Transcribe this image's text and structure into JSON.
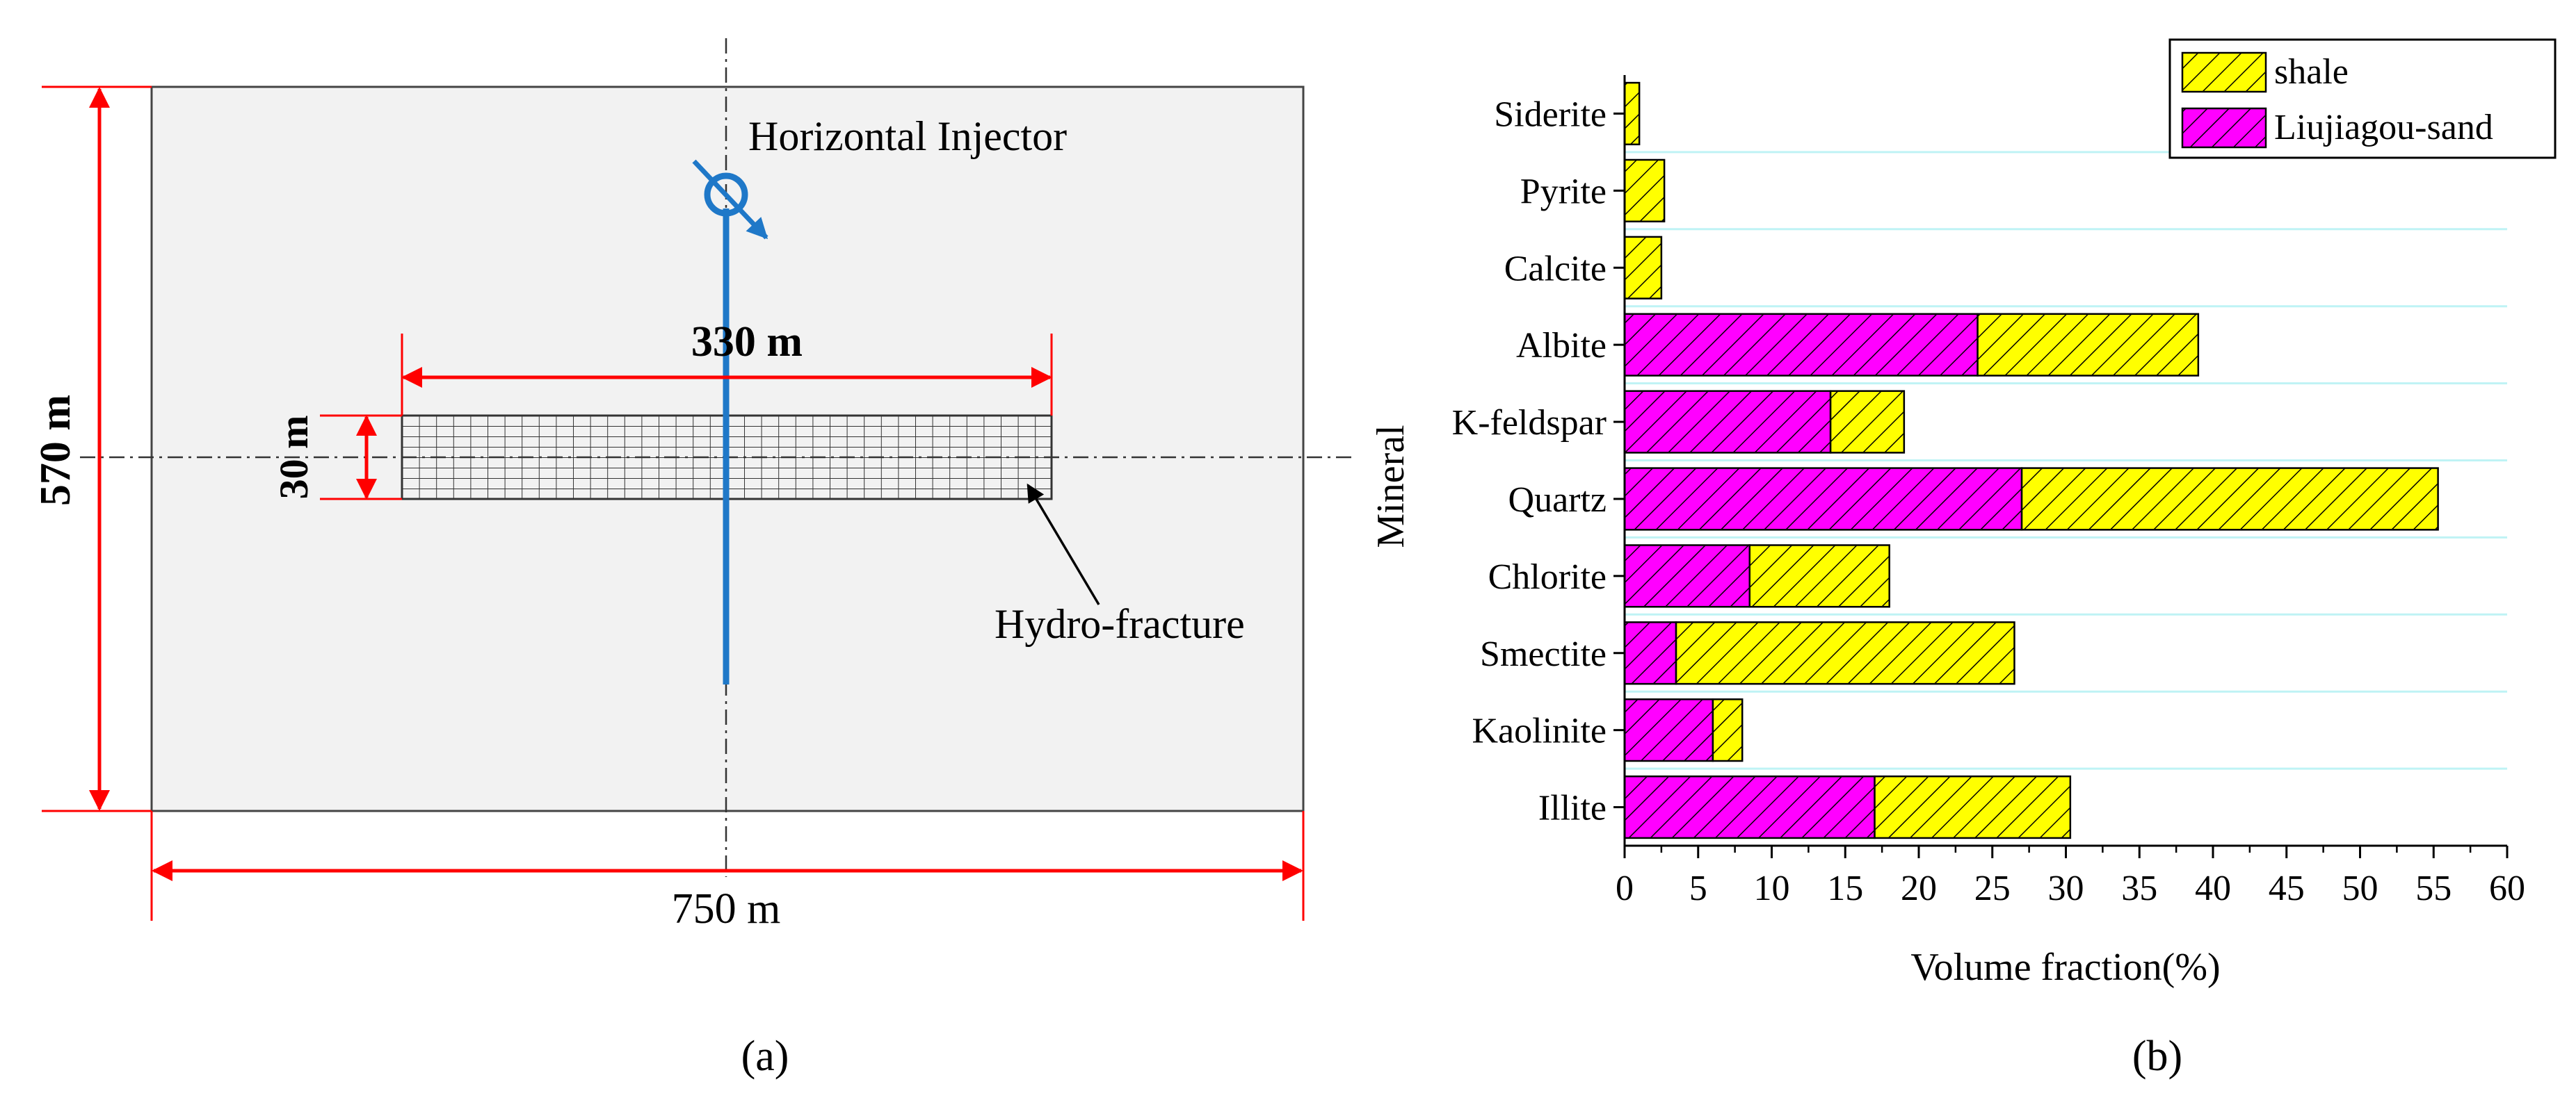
{
  "panel_a": {
    "injector_label": "Horizontal Injector",
    "fracture_length": "330 m",
    "fracture_width": "30 m",
    "domain_height": "570 m",
    "domain_width": "750 m",
    "fracture_label": "Hydro-fracture",
    "caption": "(a)",
    "colors": {
      "dimension": "#ff0000",
      "well": "#1f78c8",
      "domain_fill": "#f2f2f2",
      "grid": "#333333"
    }
  },
  "panel_b": {
    "caption": "(b)"
  },
  "chart_data": {
    "type": "bar",
    "orientation": "horizontal",
    "stacked": true,
    "categories": [
      "Siderite",
      "Pyrite",
      "Calcite",
      "Albite",
      "K-feldspar",
      "Quartz",
      "Chlorite",
      "Smectite",
      "Kaolinite",
      "Illite"
    ],
    "series": [
      {
        "name": "Liujiagou-sand",
        "color": "#ff00ff",
        "values": [
          0,
          0,
          0,
          24,
          14,
          27,
          8.5,
          3.5,
          6,
          17
        ]
      },
      {
        "name": "shale",
        "color": "#ffff00",
        "values": [
          1,
          2.7,
          2.5,
          15,
          5,
          28.3,
          9.5,
          23,
          2,
          13.3
        ]
      }
    ],
    "legend_order": [
      "shale",
      "Liujiagou-sand"
    ],
    "legend_position": "top-right",
    "xlabel": "Volume fraction(%)",
    "ylabel": "Mineral",
    "xlim": [
      0,
      60
    ],
    "xticks": [
      0,
      5,
      10,
      15,
      20,
      25,
      30,
      35,
      40,
      45,
      50,
      55,
      60
    ],
    "grid_color": "#bff3f5"
  }
}
